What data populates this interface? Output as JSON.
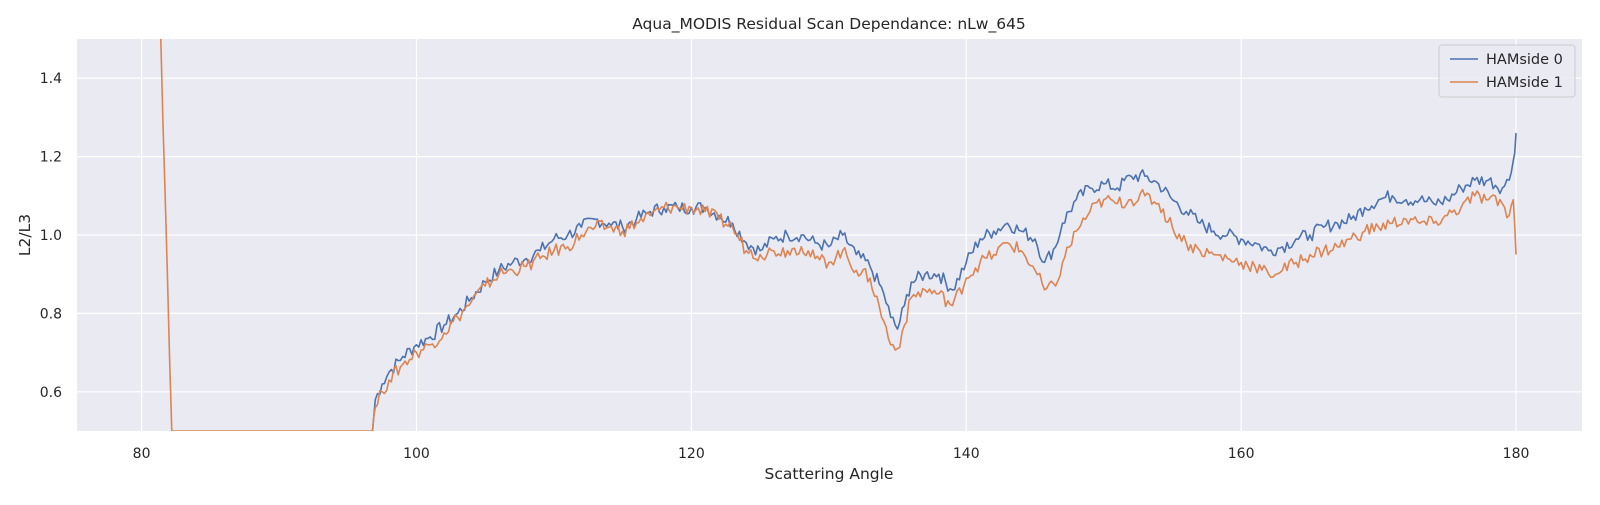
{
  "chart_data": {
    "type": "line",
    "title": "Aqua_MODIS Residual Scan Dependance: nLw_645",
    "xlabel": "Scattering Angle",
    "ylabel": "L2/L3",
    "xlim": [
      75.3,
      184.8
    ],
    "ylim": [
      0.5,
      1.5
    ],
    "xticks": [
      80,
      100,
      120,
      140,
      160,
      180
    ],
    "yticks": [
      0.6,
      0.8,
      1.0,
      1.2,
      1.4
    ],
    "xtick_labels": [
      "80",
      "100",
      "120",
      "140",
      "160",
      "180"
    ],
    "ytick_labels": [
      "0.6",
      "0.8",
      "1.0",
      "1.2",
      "1.4"
    ],
    "grid": true,
    "legend_position": "top-right",
    "series": [
      {
        "name": "HAMside 0",
        "color": "#4c72b0",
        "x": [
          96.8,
          97.0,
          97.5,
          98.0,
          99.0,
          100.0,
          101.0,
          102.0,
          103.0,
          104.0,
          105.0,
          106.0,
          107.0,
          108.0,
          109.0,
          110.0,
          111.0,
          112.0,
          113.0,
          114.0,
          115.0,
          116.0,
          117.0,
          118.0,
          119.0,
          120.0,
          121.0,
          122.0,
          123.0,
          124.0,
          125.0,
          126.0,
          127.0,
          128.0,
          129.0,
          130.0,
          131.0,
          132.0,
          133.0,
          134.0,
          134.5,
          135.0,
          135.5,
          136.0,
          137.0,
          138.0,
          139.0,
          140.0,
          141.0,
          142.0,
          143.0,
          144.0,
          145.0,
          145.7,
          146.5,
          147.0,
          148.0,
          149.0,
          150.0,
          151.0,
          152.0,
          153.0,
          154.0,
          155.0,
          156.0,
          157.0,
          158.0,
          159.0,
          160.0,
          161.0,
          162.0,
          163.0,
          164.0,
          165.0,
          166.0,
          167.0,
          168.0,
          169.0,
          170.0,
          171.0,
          172.0,
          173.0,
          174.0,
          175.0,
          176.0,
          177.0,
          178.0,
          179.0,
          179.5,
          179.8,
          180.0
        ],
        "values": [
          0.5,
          0.58,
          0.62,
          0.65,
          0.69,
          0.72,
          0.74,
          0.77,
          0.8,
          0.84,
          0.88,
          0.91,
          0.93,
          0.94,
          0.96,
          0.99,
          1.0,
          1.02,
          1.04,
          1.03,
          1.02,
          1.04,
          1.06,
          1.07,
          1.07,
          1.07,
          1.07,
          1.05,
          1.03,
          0.98,
          0.96,
          0.99,
          1.0,
          1.0,
          0.98,
          0.97,
          1.0,
          0.95,
          0.92,
          0.85,
          0.79,
          0.76,
          0.82,
          0.88,
          0.9,
          0.9,
          0.86,
          0.93,
          0.99,
          1.01,
          1.03,
          1.01,
          0.99,
          0.93,
          0.97,
          1.03,
          1.09,
          1.12,
          1.13,
          1.12,
          1.15,
          1.15,
          1.13,
          1.09,
          1.06,
          1.03,
          1.01,
          1.0,
          0.99,
          0.98,
          0.96,
          0.97,
          0.99,
          1.0,
          1.02,
          1.03,
          1.04,
          1.07,
          1.09,
          1.1,
          1.09,
          1.09,
          1.08,
          1.09,
          1.12,
          1.14,
          1.14,
          1.12,
          1.14,
          1.19,
          1.26
        ]
      },
      {
        "name": "HAMside 1",
        "color": "#dd8452",
        "x": [
          81.4,
          82.2,
          96.8,
          97.0,
          97.5,
          98.0,
          99.0,
          100.0,
          101.0,
          102.0,
          103.0,
          104.0,
          105.0,
          106.0,
          107.0,
          108.0,
          109.0,
          110.0,
          111.0,
          112.0,
          113.0,
          114.0,
          115.0,
          116.0,
          117.0,
          118.0,
          119.0,
          120.0,
          121.0,
          122.0,
          123.0,
          124.0,
          125.0,
          126.0,
          127.0,
          128.0,
          129.0,
          130.0,
          131.0,
          132.0,
          133.0,
          134.0,
          134.5,
          135.0,
          135.5,
          136.0,
          137.0,
          138.0,
          139.0,
          140.0,
          141.0,
          142.0,
          143.0,
          144.0,
          145.0,
          145.7,
          146.5,
          147.0,
          148.0,
          149.0,
          150.0,
          151.0,
          152.0,
          153.0,
          154.0,
          155.0,
          156.0,
          157.0,
          158.0,
          159.0,
          160.0,
          161.0,
          162.0,
          163.0,
          164.0,
          165.0,
          166.0,
          167.0,
          168.0,
          169.0,
          170.0,
          171.0,
          172.0,
          173.0,
          174.0,
          175.0,
          176.0,
          177.0,
          178.0,
          179.0,
          179.5,
          179.8,
          180.0
        ],
        "values": [
          1.5,
          0.5,
          0.5,
          0.56,
          0.6,
          0.63,
          0.67,
          0.7,
          0.72,
          0.75,
          0.79,
          0.83,
          0.87,
          0.9,
          0.91,
          0.92,
          0.94,
          0.96,
          0.97,
          1.0,
          1.02,
          1.02,
          1.01,
          1.03,
          1.05,
          1.07,
          1.07,
          1.07,
          1.06,
          1.04,
          1.02,
          0.96,
          0.95,
          0.96,
          0.96,
          0.97,
          0.94,
          0.93,
          0.96,
          0.91,
          0.89,
          0.78,
          0.72,
          0.71,
          0.77,
          0.84,
          0.86,
          0.85,
          0.82,
          0.89,
          0.93,
          0.95,
          0.98,
          0.96,
          0.91,
          0.86,
          0.87,
          0.93,
          1.01,
          1.06,
          1.09,
          1.08,
          1.09,
          1.1,
          1.08,
          1.02,
          0.98,
          0.96,
          0.95,
          0.94,
          0.93,
          0.92,
          0.9,
          0.91,
          0.93,
          0.95,
          0.96,
          0.97,
          0.99,
          1.01,
          1.02,
          1.03,
          1.04,
          1.03,
          1.03,
          1.05,
          1.07,
          1.1,
          1.09,
          1.08,
          1.05,
          1.09,
          0.95
        ]
      }
    ]
  }
}
